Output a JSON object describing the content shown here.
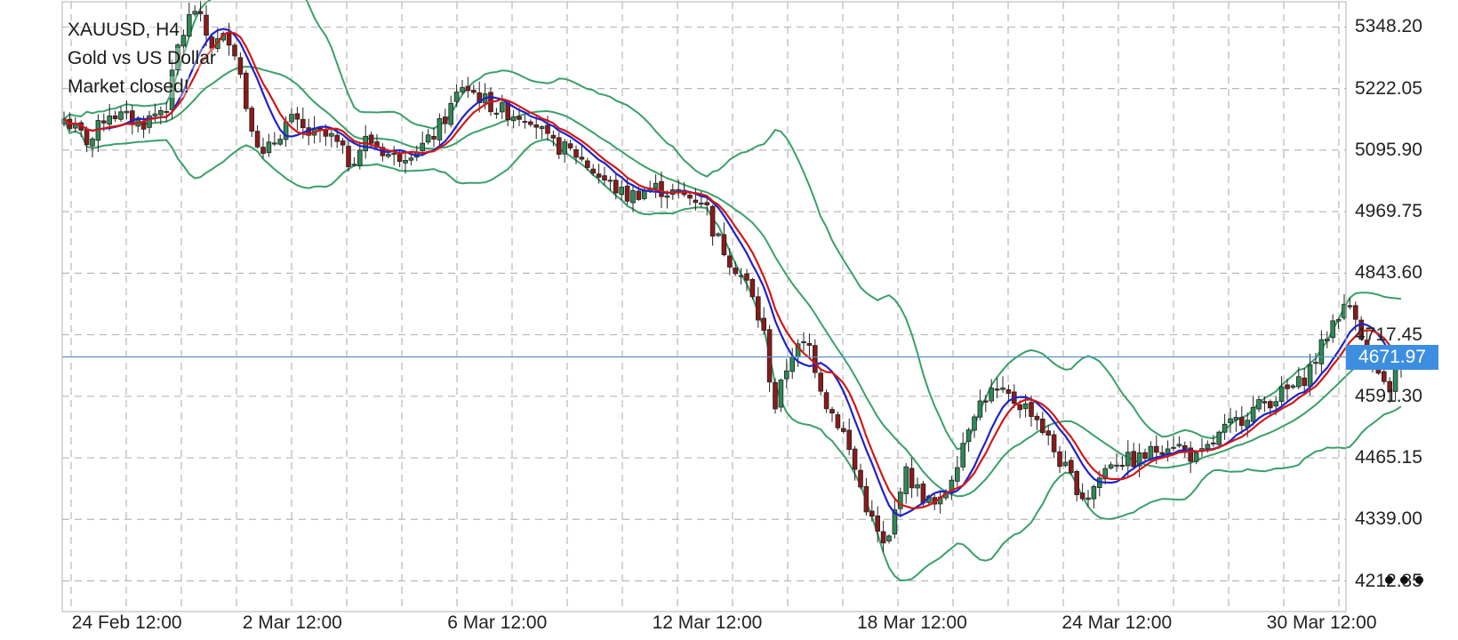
{
  "info": {
    "symbol_timeframe": "XAUUSD, H4",
    "description": "Gold vs US Dollar",
    "status": "Market closed!"
  },
  "current_price": "4671.97",
  "price_axis": [
    "5348.20",
    "5222.05",
    "5095.90",
    "4969.75",
    "4843.60",
    "4717.45",
    "4591.30",
    "4465.15",
    "4339.00",
    "4212.85"
  ],
  "date_axis": [
    "24 Feb 12:00",
    "2 Mar 12:00",
    "6 Mar 12:00",
    "12 Mar 12:00",
    "18 Mar 12:00",
    "24 Mar 12:00",
    "30 Mar 12:00"
  ],
  "more_menu": "more-options-icon",
  "colors": {
    "bull": "#2e8b57",
    "bear": "#8b1a1a",
    "ma_fast": "#1e22c8",
    "ma_slow": "#d01818",
    "bands": "#3aa06a",
    "price_line": "#4f8fc8",
    "badge": "#3d8ee0",
    "grid": "#b8b8b8"
  },
  "chart_data": {
    "type": "candlestick",
    "symbol": "XAUUSD",
    "timeframe": "H4",
    "ylim": [
      4150,
      5400
    ],
    "yticks": [
      5348.2,
      5222.05,
      5095.9,
      4969.75,
      4843.6,
      4717.45,
      4591.3,
      4465.15,
      4339.0,
      4212.85
    ],
    "xtick_labels": [
      "24 Feb 12:00",
      "2 Mar 12:00",
      "6 Mar 12:00",
      "12 Mar 12:00",
      "18 Mar 12:00",
      "24 Mar 12:00",
      "30 Mar 12:00"
    ],
    "xtick_index": [
      2,
      32,
      68,
      104,
      140,
      176,
      212
    ],
    "bar_count": 236,
    "anchors": [
      [
        0,
        5160
      ],
      [
        6,
        5110
      ],
      [
        10,
        5175
      ],
      [
        18,
        5150
      ],
      [
        24,
        5190
      ],
      [
        26,
        5300
      ],
      [
        30,
        5390
      ],
      [
        34,
        5310
      ],
      [
        38,
        5330
      ],
      [
        40,
        5290
      ],
      [
        42,
        5190
      ],
      [
        46,
        5080
      ],
      [
        52,
        5160
      ],
      [
        56,
        5130
      ],
      [
        62,
        5120
      ],
      [
        66,
        5070
      ],
      [
        70,
        5120
      ],
      [
        76,
        5080
      ],
      [
        84,
        5110
      ],
      [
        88,
        5160
      ],
      [
        92,
        5230
      ],
      [
        100,
        5180
      ],
      [
        104,
        5170
      ],
      [
        108,
        5165
      ],
      [
        112,
        5110
      ],
      [
        118,
        5090
      ],
      [
        124,
        5040
      ],
      [
        130,
        5000
      ],
      [
        136,
        5020
      ],
      [
        144,
        5000
      ],
      [
        148,
        4995
      ],
      [
        150,
        4930
      ],
      [
        154,
        4870
      ],
      [
        158,
        4820
      ],
      [
        162,
        4710
      ],
      [
        164,
        4560
      ],
      [
        168,
        4680
      ],
      [
        172,
        4700
      ],
      [
        176,
        4580
      ],
      [
        180,
        4520
      ],
      [
        186,
        4350
      ],
      [
        190,
        4270
      ],
      [
        194,
        4440
      ],
      [
        198,
        4390
      ],
      [
        202,
        4360
      ],
      [
        206,
        4450
      ],
      [
        210,
        4560
      ],
      [
        214,
        4600
      ],
      [
        218,
        4590
      ],
      [
        224,
        4560
      ],
      [
        230,
        4460
      ],
      [
        236,
        4380
      ],
      [
        242,
        4460
      ],
      [
        248,
        4460
      ],
      [
        256,
        4500
      ],
      [
        262,
        4460
      ],
      [
        268,
        4520
      ],
      [
        274,
        4560
      ],
      [
        280,
        4590
      ],
      [
        286,
        4620
      ],
      [
        290,
        4680
      ],
      [
        294,
        4760
      ],
      [
        298,
        4780
      ],
      [
        301,
        4680
      ],
      [
        304,
        4620
      ],
      [
        306,
        4600
      ],
      [
        309,
        4672
      ]
    ],
    "ma_fast_period": 8,
    "ma_slow_period": 10,
    "bollinger_period": 20,
    "bollinger_width": 2,
    "last_price": 4671.97
  }
}
